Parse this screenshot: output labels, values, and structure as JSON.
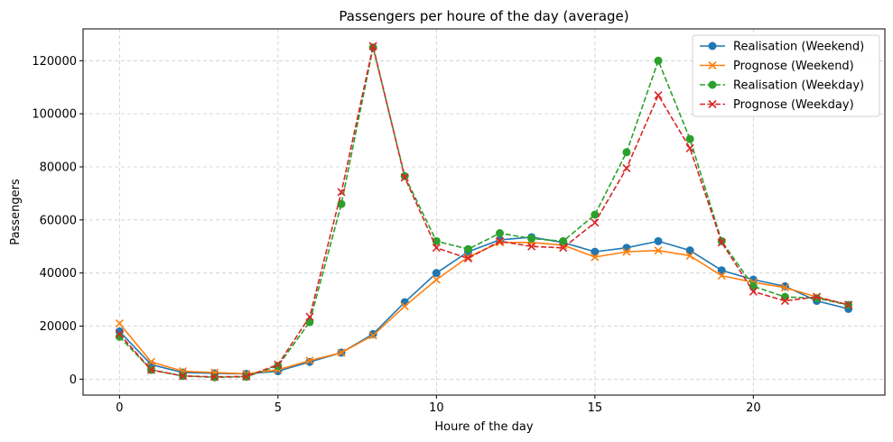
{
  "chart_data": {
    "type": "line",
    "title": "Passengers per houre of the day (average)",
    "xlabel": "Houre of the day",
    "ylabel": "Passengers",
    "xlim": [
      -1.15,
      24.15
    ],
    "ylim": [
      -6000,
      132000
    ],
    "xticks": [
      0,
      5,
      10,
      15,
      20
    ],
    "yticks": [
      0,
      20000,
      40000,
      60000,
      80000,
      100000,
      120000
    ],
    "grid": true,
    "legend_position": "top-right",
    "x": [
      0,
      1,
      2,
      3,
      4,
      5,
      6,
      7,
      8,
      9,
      10,
      11,
      12,
      13,
      14,
      15,
      16,
      17,
      18,
      19,
      20,
      21,
      22,
      23
    ],
    "series": [
      {
        "name": "Realisation (Weekend)",
        "color": "#1f77b4",
        "marker": "circle",
        "linestyle": "solid",
        "values": [
          18000,
          5500,
          2500,
          2200,
          2000,
          3000,
          6500,
          10000,
          17000,
          29000,
          40000,
          48000,
          52500,
          53500,
          51500,
          48000,
          49500,
          52000,
          48500,
          41000,
          37500,
          35000,
          29500,
          26500
        ]
      },
      {
        "name": "Prognose (Weekend)",
        "color": "#ff7f0e",
        "marker": "x",
        "linestyle": "solid",
        "values": [
          21000,
          6500,
          3000,
          2500,
          2000,
          3500,
          7000,
          10000,
          16500,
          27500,
          37500,
          46000,
          51500,
          51500,
          50500,
          46000,
          48000,
          48500,
          46500,
          39000,
          36500,
          34500,
          31000,
          28000
        ]
      },
      {
        "name": "Realisation (Weekday)",
        "color": "#2ca02c",
        "marker": "circle",
        "linestyle": "dashed",
        "values": [
          16000,
          3500,
          1200,
          700,
          900,
          5000,
          21500,
          66000,
          125000,
          76500,
          52000,
          49000,
          55000,
          53000,
          52000,
          62000,
          85500,
          120000,
          90500,
          52000,
          35000,
          31000,
          30500,
          28000
        ]
      },
      {
        "name": "Prognose (Weekday)",
        "color": "#d62728",
        "marker": "x",
        "linestyle": "dashed",
        "values": [
          17000,
          3500,
          1200,
          900,
          1000,
          5500,
          23500,
          70500,
          125500,
          76000,
          49500,
          45500,
          52000,
          50000,
          49500,
          59000,
          79500,
          107000,
          87000,
          51500,
          33000,
          29500,
          31000,
          28000
        ]
      }
    ]
  }
}
